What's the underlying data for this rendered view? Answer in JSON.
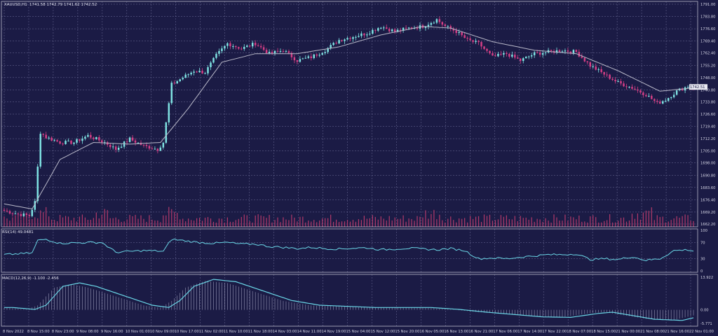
{
  "header": {
    "symbol": "XAUUSD,H1",
    "ohlc": "1741.58 1742.79 1741.62 1742.52"
  },
  "colors": {
    "background": "#1b1b45",
    "grid": "#6e6e9a",
    "bull": "#7fe3e3",
    "bear": "#d63f86",
    "volume": "#b23a6a",
    "ma": "#b9b9c9",
    "indicator_line": "#6ad6e6",
    "text": "#d6d6e6",
    "frame": "#b9b9c9"
  },
  "chart_data": [
    {
      "type": "candlestick",
      "symbol": "XAUUSD,H1",
      "price_label": "1742.51",
      "y_ticks": [
        "1791.00",
        "1783.80",
        "1776.60",
        "1769.40",
        "1762.40",
        "1755.20",
        "1748.00",
        "1740.80",
        "1733.80",
        "1726.60",
        "1719.40",
        "1712.20",
        "1705.00",
        "1698.00",
        "1690.80",
        "1683.60",
        "1676.40",
        "1669.20",
        "1662.20"
      ],
      "ylim": [
        1662.2,
        1791.0
      ],
      "x_ticks": [
        "8 Nov 2022",
        "8 Nov 15:00",
        "8 Nov 23:00",
        "9 Nov 08:00",
        "9 Nov 16:00",
        "10 Nov 01:00",
        "10 Nov 09:00",
        "10 Nov 17:00",
        "11 Nov 02:00",
        "11 Nov 10:00",
        "11 Nov 18:00",
        "14 Nov 03:00",
        "14 Nov 11:00",
        "14 Nov 19:00",
        "15 Nov 04:00",
        "15 Nov 12:00",
        "15 Nov 20:00",
        "16 Nov 05:00",
        "16 Nov 13:00",
        "16 Nov 21:00",
        "17 Nov 06:00",
        "17 Nov 14:00",
        "17 Nov 22:00",
        "18 Nov 07:00",
        "18 Nov 15:00",
        "21 Nov 00:00",
        "21 Nov 08:00",
        "21 Nov 16:00",
        "22 Nov 01:00"
      ],
      "close_anchors": [
        [
          0,
          1670
        ],
        [
          5,
          1668
        ],
        [
          9,
          1667
        ],
        [
          11,
          1675
        ],
        [
          13,
          1716
        ],
        [
          15,
          1713
        ],
        [
          20,
          1710
        ],
        [
          25,
          1710
        ],
        [
          30,
          1714
        ],
        [
          36,
          1710
        ],
        [
          40,
          1706
        ],
        [
          45,
          1712
        ],
        [
          50,
          1708
        ],
        [
          55,
          1706
        ],
        [
          57,
          1710
        ],
        [
          60,
          1744
        ],
        [
          64,
          1748
        ],
        [
          68,
          1752
        ],
        [
          72,
          1751
        ],
        [
          76,
          1761
        ],
        [
          80,
          1768
        ],
        [
          85,
          1765
        ],
        [
          90,
          1768
        ],
        [
          95,
          1762
        ],
        [
          100,
          1764
        ],
        [
          105,
          1758
        ],
        [
          110,
          1760
        ],
        [
          115,
          1764
        ],
        [
          120,
          1770
        ],
        [
          125,
          1772
        ],
        [
          130,
          1774
        ],
        [
          135,
          1778
        ],
        [
          140,
          1775
        ],
        [
          145,
          1777
        ],
        [
          150,
          1778
        ],
        [
          155,
          1782
        ],
        [
          158,
          1778
        ],
        [
          162,
          1775
        ],
        [
          166,
          1770
        ],
        [
          170,
          1768
        ],
        [
          175,
          1760
        ],
        [
          180,
          1762
        ],
        [
          185,
          1758
        ],
        [
          190,
          1762
        ],
        [
          195,
          1763
        ],
        [
          200,
          1764
        ],
        [
          205,
          1763
        ],
        [
          210,
          1755
        ],
        [
          215,
          1750
        ],
        [
          220,
          1745
        ],
        [
          225,
          1742
        ],
        [
          230,
          1738
        ],
        [
          234,
          1733
        ],
        [
          237,
          1735
        ],
        [
          241,
          1740
        ],
        [
          245,
          1743
        ],
        [
          247,
          1742.5
        ]
      ],
      "ma_anchors": [
        [
          0,
          1674
        ],
        [
          10,
          1671
        ],
        [
          20,
          1700
        ],
        [
          32,
          1710
        ],
        [
          45,
          1709
        ],
        [
          56,
          1710
        ],
        [
          66,
          1730
        ],
        [
          78,
          1757
        ],
        [
          90,
          1762
        ],
        [
          105,
          1762
        ],
        [
          120,
          1766
        ],
        [
          135,
          1773
        ],
        [
          150,
          1778
        ],
        [
          160,
          1777
        ],
        [
          175,
          1769
        ],
        [
          190,
          1764
        ],
        [
          205,
          1762
        ],
        [
          220,
          1752
        ],
        [
          235,
          1740
        ],
        [
          247,
          1742
        ]
      ]
    },
    {
      "type": "line",
      "name": "RSI(14)",
      "header": "RSI(14) 49.0481",
      "y_ticks": [
        "100",
        "70",
        "30",
        "0"
      ],
      "ylim": [
        0,
        100
      ],
      "anchors": [
        [
          0,
          40
        ],
        [
          10,
          44
        ],
        [
          12,
          75
        ],
        [
          15,
          78
        ],
        [
          20,
          68
        ],
        [
          30,
          70
        ],
        [
          35,
          70
        ],
        [
          40,
          46
        ],
        [
          45,
          48
        ],
        [
          50,
          50
        ],
        [
          55,
          49
        ],
        [
          57,
          48
        ],
        [
          60,
          78
        ],
        [
          65,
          74
        ],
        [
          70,
          70
        ],
        [
          75,
          68
        ],
        [
          80,
          70
        ],
        [
          85,
          66
        ],
        [
          90,
          66
        ],
        [
          95,
          60
        ],
        [
          100,
          58
        ],
        [
          105,
          55
        ],
        [
          110,
          58
        ],
        [
          115,
          55
        ],
        [
          120,
          54
        ],
        [
          125,
          56
        ],
        [
          130,
          57
        ],
        [
          135,
          52
        ],
        [
          140,
          54
        ],
        [
          145,
          56
        ],
        [
          150,
          54
        ],
        [
          155,
          52
        ],
        [
          160,
          55
        ],
        [
          165,
          50
        ],
        [
          170,
          30
        ],
        [
          175,
          32
        ],
        [
          180,
          30
        ],
        [
          185,
          34
        ],
        [
          190,
          37
        ],
        [
          195,
          40
        ],
        [
          200,
          40
        ],
        [
          205,
          42
        ],
        [
          210,
          28
        ],
        [
          215,
          30
        ],
        [
          220,
          28
        ],
        [
          225,
          35
        ],
        [
          230,
          26
        ],
        [
          235,
          30
        ],
        [
          240,
          50
        ],
        [
          245,
          52
        ],
        [
          247,
          49
        ]
      ]
    },
    {
      "type": "line",
      "name": "MACD(12,26,9)",
      "header": "MACD(12,26,9) -1.100 -2.456",
      "y_ticks": [
        "13.922",
        "0.00",
        "-5.771"
      ],
      "ylim": [
        -5.771,
        13.922
      ],
      "anchors": [
        [
          0,
          1
        ],
        [
          8,
          0.2
        ],
        [
          12,
          2
        ],
        [
          18,
          10
        ],
        [
          24,
          11.5
        ],
        [
          30,
          10
        ],
        [
          40,
          6
        ],
        [
          50,
          2
        ],
        [
          56,
          1
        ],
        [
          60,
          4
        ],
        [
          65,
          10
        ],
        [
          72,
          13
        ],
        [
          80,
          12
        ],
        [
          90,
          8
        ],
        [
          100,
          4
        ],
        [
          110,
          2
        ],
        [
          120,
          1.5
        ],
        [
          130,
          1
        ],
        [
          140,
          1
        ],
        [
          150,
          1
        ],
        [
          160,
          0.2
        ],
        [
          170,
          -1
        ],
        [
          180,
          -2
        ],
        [
          190,
          -3
        ],
        [
          200,
          -3.2
        ],
        [
          210,
          -1.5
        ],
        [
          215,
          -1
        ],
        [
          220,
          -2
        ],
        [
          230,
          -4
        ],
        [
          240,
          -4.5
        ],
        [
          247,
          -2.5
        ]
      ]
    }
  ]
}
